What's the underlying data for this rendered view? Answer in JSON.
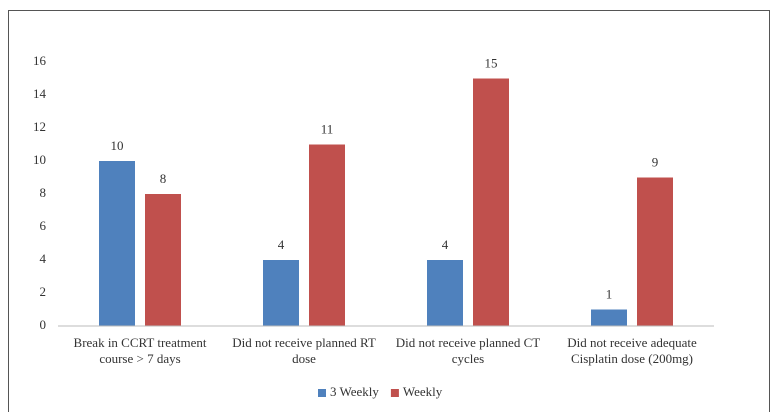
{
  "chart_data": {
    "type": "bar",
    "categories": [
      "Break in CCRT treatment course > 7 days",
      "Did not receive planned RT dose",
      "Did not receive planned CT cycles",
      "Did not receive adequate Cisplatin dose (200mg)"
    ],
    "series": [
      {
        "name": "3 Weekly",
        "color": "#4f81bd",
        "values": [
          10,
          4,
          4,
          1
        ]
      },
      {
        "name": "Weekly",
        "color": "#c0504d",
        "values": [
          8,
          11,
          15,
          9
        ]
      }
    ],
    "ylim": [
      0,
      16
    ],
    "yticks": [
      0,
      2,
      4,
      6,
      8,
      10,
      12,
      14,
      16
    ],
    "grid": false,
    "legend": "bottom"
  }
}
